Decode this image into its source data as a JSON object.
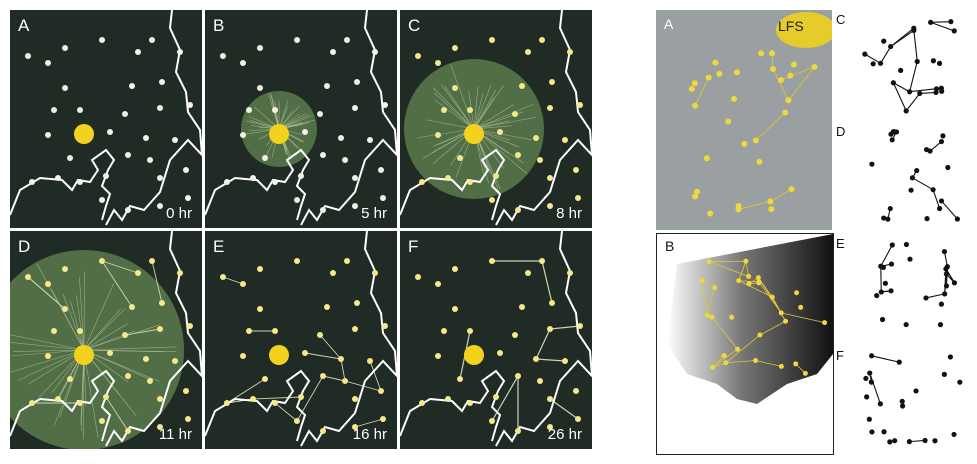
{
  "left_figure": {
    "panels": [
      {
        "label": "A",
        "time": "0 hr",
        "growth": 0
      },
      {
        "label": "B",
        "time": "5 hr",
        "growth": 1
      },
      {
        "label": "C",
        "time": "8 hr",
        "growth": 2
      },
      {
        "label": "D",
        "time": "11 hr",
        "growth": 3
      },
      {
        "label": "E",
        "time": "16 hr",
        "growth": 4
      },
      {
        "label": "F",
        "time": "26 hr",
        "growth": 5
      }
    ]
  },
  "right_figure": {
    "photo_a": {
      "label": "A",
      "corner_text": "LFS"
    },
    "photo_b": {
      "label": "B"
    },
    "graphs": [
      {
        "label": "C"
      },
      {
        "label": "D"
      },
      {
        "label": "E"
      },
      {
        "label": "F"
      }
    ]
  },
  "colors": {
    "dish_background": "#1f2b24",
    "mold_green": "#5c7a4d",
    "oat_flake": "#f4f2e8",
    "mold_yellow": "#f2d21c",
    "coastline": "#ffffff",
    "graph_ink": "#111111"
  }
}
